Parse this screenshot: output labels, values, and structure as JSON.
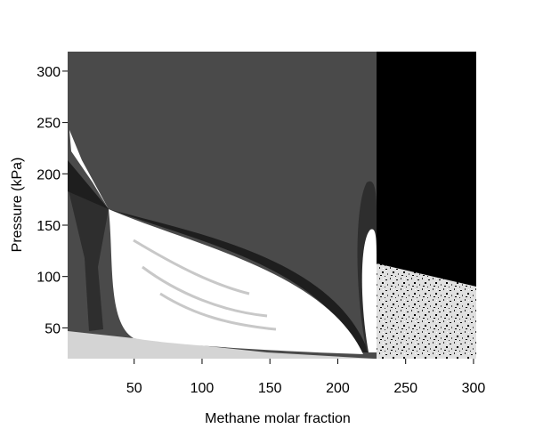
{
  "chart_data": {
    "type": "region-map",
    "x_label": "Methane molar fraction",
    "y_label": "Pressure (kPa)",
    "xlim": [
      1,
      302
    ],
    "ylim": [
      20,
      319
    ],
    "xticks": [
      50,
      100,
      150,
      200,
      250,
      300
    ],
    "yticks": [
      50,
      100,
      150,
      200,
      250,
      300
    ]
  }
}
